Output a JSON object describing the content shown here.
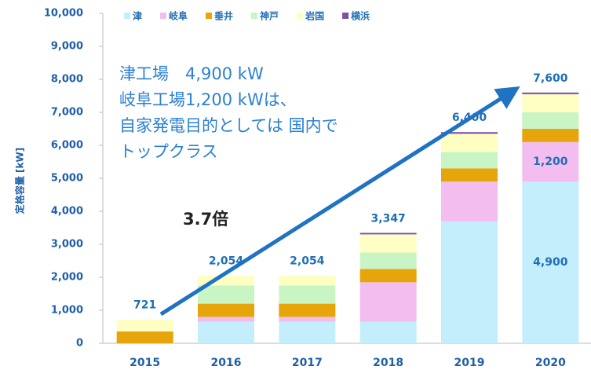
{
  "chart_data": {
    "type": "stacked_bar",
    "y_label": "定格容量 [kW]",
    "categories": [
      "2015",
      "2016",
      "2017",
      "2018",
      "2019",
      "2020"
    ],
    "series": [
      {
        "name": "津",
        "color": "#c4eefc",
        "values": [
          0,
          650,
          650,
          650,
          3700,
          4900
        ],
        "value_labels": [
          null,
          null,
          null,
          null,
          null,
          "4,900"
        ]
      },
      {
        "name": "岐阜",
        "color": "#f3bdf0",
        "values": [
          0,
          150,
          150,
          1200,
          1200,
          1200
        ],
        "value_labels": [
          null,
          null,
          null,
          null,
          null,
          "1,200"
        ]
      },
      {
        "name": "垂井",
        "color": "#e6a50a",
        "values": [
          360,
          400,
          400,
          400,
          400,
          400
        ]
      },
      {
        "name": "神戸",
        "color": "#c9f5c4",
        "values": [
          0,
          550,
          550,
          500,
          500,
          500
        ]
      },
      {
        "name": "岩国",
        "color": "#ffffc4",
        "values": [
          361,
          304,
          304,
          550,
          550,
          550
        ]
      },
      {
        "name": "横浜",
        "color": "#7d52a6",
        "values": [
          0,
          0,
          0,
          47,
          50,
          50
        ]
      }
    ],
    "totals": [
      721,
      2054,
      2054,
      3347,
      6400,
      7600
    ],
    "total_labels": [
      "721",
      "2,054",
      "2,054",
      "3,347",
      "6,400",
      "7,600"
    ],
    "ylim": [
      0,
      10000
    ],
    "yticks": [
      0,
      {
        "value": 1000,
        "label": "1,000"
      },
      {
        "value": 2000,
        "label": "2,000"
      },
      {
        "value": 3000,
        "label": "3,000"
      },
      {
        "value": 4000,
        "label": "4,000"
      },
      {
        "value": 5000,
        "label": "5,000"
      },
      {
        "value": 6000,
        "label": "6,000"
      },
      {
        "value": 7000,
        "label": "7,000"
      },
      {
        "value": 8000,
        "label": "8,000"
      },
      {
        "value": 9000,
        "label": "9,000"
      },
      {
        "value": 10000,
        "label": "10,000"
      }
    ],
    "annotations": [
      "津工場　4,900 kW",
      "岐阜工場1,200 kWは、",
      "自家発電目的としては 国内で",
      "トップクラス",
      "3.7倍"
    ]
  }
}
